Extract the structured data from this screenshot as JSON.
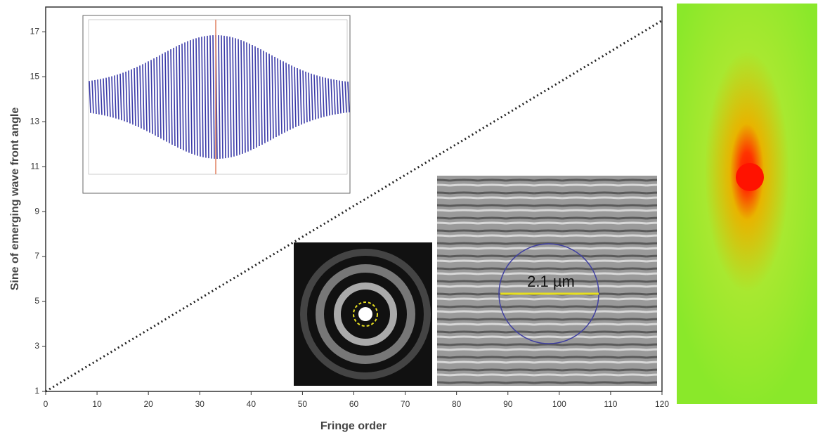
{
  "chart_data": {
    "type": "line",
    "x_label": "Fringe order",
    "y_label": "Sine of emerging wave front angle",
    "x": [
      0,
      120
    ],
    "series": [
      {
        "values": [
          1,
          17.5
        ],
        "color": "#222222"
      }
    ],
    "xlim": [
      0,
      120
    ],
    "xticks": [
      0,
      10,
      20,
      30,
      40,
      50,
      60,
      70,
      80,
      90,
      100,
      110,
      120
    ],
    "ylim": [
      1,
      18.1
    ],
    "yticks": [
      1,
      3,
      5,
      7,
      9,
      11,
      13,
      15,
      17
    ],
    "annotations": [
      "2.1 µm"
    ]
  }
}
